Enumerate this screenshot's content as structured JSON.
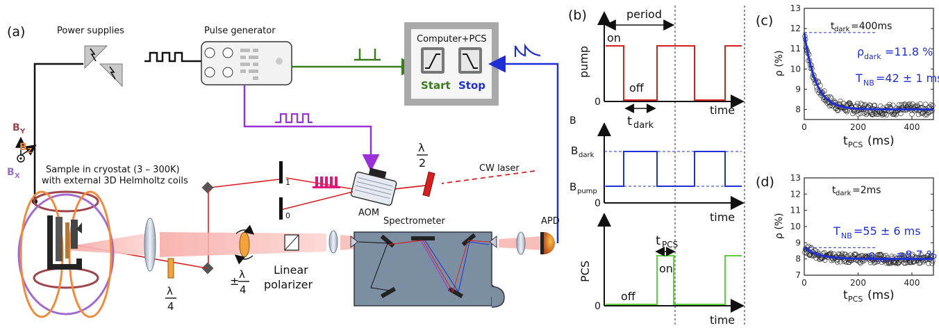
{
  "panel_a": {
    "label": "(a)",
    "power_supplies": "Power supplies",
    "pulse_generator": "Pulse generator",
    "computer": "Computer+PCS",
    "start": "Start",
    "stop": "Stop",
    "cw_laser": "CW laser",
    "aom": "AOM",
    "spectrometer": "Spectrometer",
    "apd": "APD",
    "linear_polarizer_1": "Linear",
    "linear_polarizer_2": "polarizer",
    "sample_1": "Sample in cryostat (3 – 300K)",
    "sample_2": "with external 3D Helmholtz coils",
    "order_1": "1",
    "order_0": "0",
    "waveplate_half_num": "λ",
    "waveplate_half_den": "2",
    "waveplate_quarter_num": "λ",
    "waveplate_quarter_den": "4",
    "pm": "±",
    "pm_quarter_num": "λ",
    "pm_quarter_den": "4",
    "by": "B",
    "by_sub": "Y",
    "bz": "B",
    "bz_sub": "Z",
    "bx": "B",
    "bx_sub": "X",
    "colors": {
      "green": "#3a7d1e",
      "blue": "#1f2fd6",
      "purple": "#9b30d9",
      "red": "#d62020",
      "beam": "#f7b7b3"
    }
  },
  "panel_b": {
    "label": "(b)",
    "period": "period",
    "pump": "pump",
    "on": "on",
    "off": "off",
    "time": "time",
    "t": "t",
    "t_dark_sub": "dark",
    "b_axis": "B",
    "b_dark": "B",
    "b_dark_sub": "dark",
    "b_pump": "B",
    "b_pump_sub": "pump",
    "pcs": "PCS",
    "t_pcs_sub": "PCS",
    "pcs_on": "on",
    "pcs_off": "off",
    "zero": "0"
  },
  "chart_data": [
    {
      "type": "scatter",
      "panel": "(c)",
      "annotation_t": "t",
      "annotation_t_sub": "dark",
      "annotation_t_val": "=400ms",
      "annotation_rho": "ρ",
      "annotation_rho_sub": "dark",
      "annotation_rho_val": "=11.8 %",
      "annotation_tnb": "T",
      "annotation_tnb_sub": "NB",
      "annotation_tnb_val": "=42 ± 1 ms",
      "ylabel": "ρ (%)",
      "xlabel": "t",
      "xlabel_sub": "PCS",
      "xlabel_unit": "(ms)",
      "xlim": [
        0,
        480
      ],
      "ylim": [
        7.5,
        13
      ],
      "xticks": [
        0,
        200,
        400
      ],
      "yticks": [
        8,
        9,
        10,
        11,
        12,
        13
      ],
      "fit": {
        "rho0": 11.8,
        "rho_inf": 8.0,
        "tau_ms": 42
      },
      "dashed_level": 11.8
    },
    {
      "type": "scatter",
      "panel": "(d)",
      "annotation_t": "t",
      "annotation_t_sub": "dark",
      "annotation_t_val": "=2ms",
      "annotation_rho": "ρ",
      "annotation_rho_sub": "dark",
      "annotation_rho_val": "=8.7 %",
      "annotation_tnb": "T",
      "annotation_tnb_sub": "NB",
      "annotation_tnb_val": "=55 ± 6 ms",
      "ylabel": "ρ (%)",
      "xlabel": "t",
      "xlabel_sub": "PCS",
      "xlabel_unit": "(ms)",
      "xlim": [
        0,
        480
      ],
      "ylim": [
        7,
        13
      ],
      "xticks": [
        0,
        200,
        400
      ],
      "yticks": [
        7,
        8,
        9,
        10,
        11,
        12,
        13
      ],
      "fit": {
        "rho0": 8.7,
        "rho_inf": 8.0,
        "tau_ms": 55
      },
      "dashed_level": 8.7
    }
  ]
}
